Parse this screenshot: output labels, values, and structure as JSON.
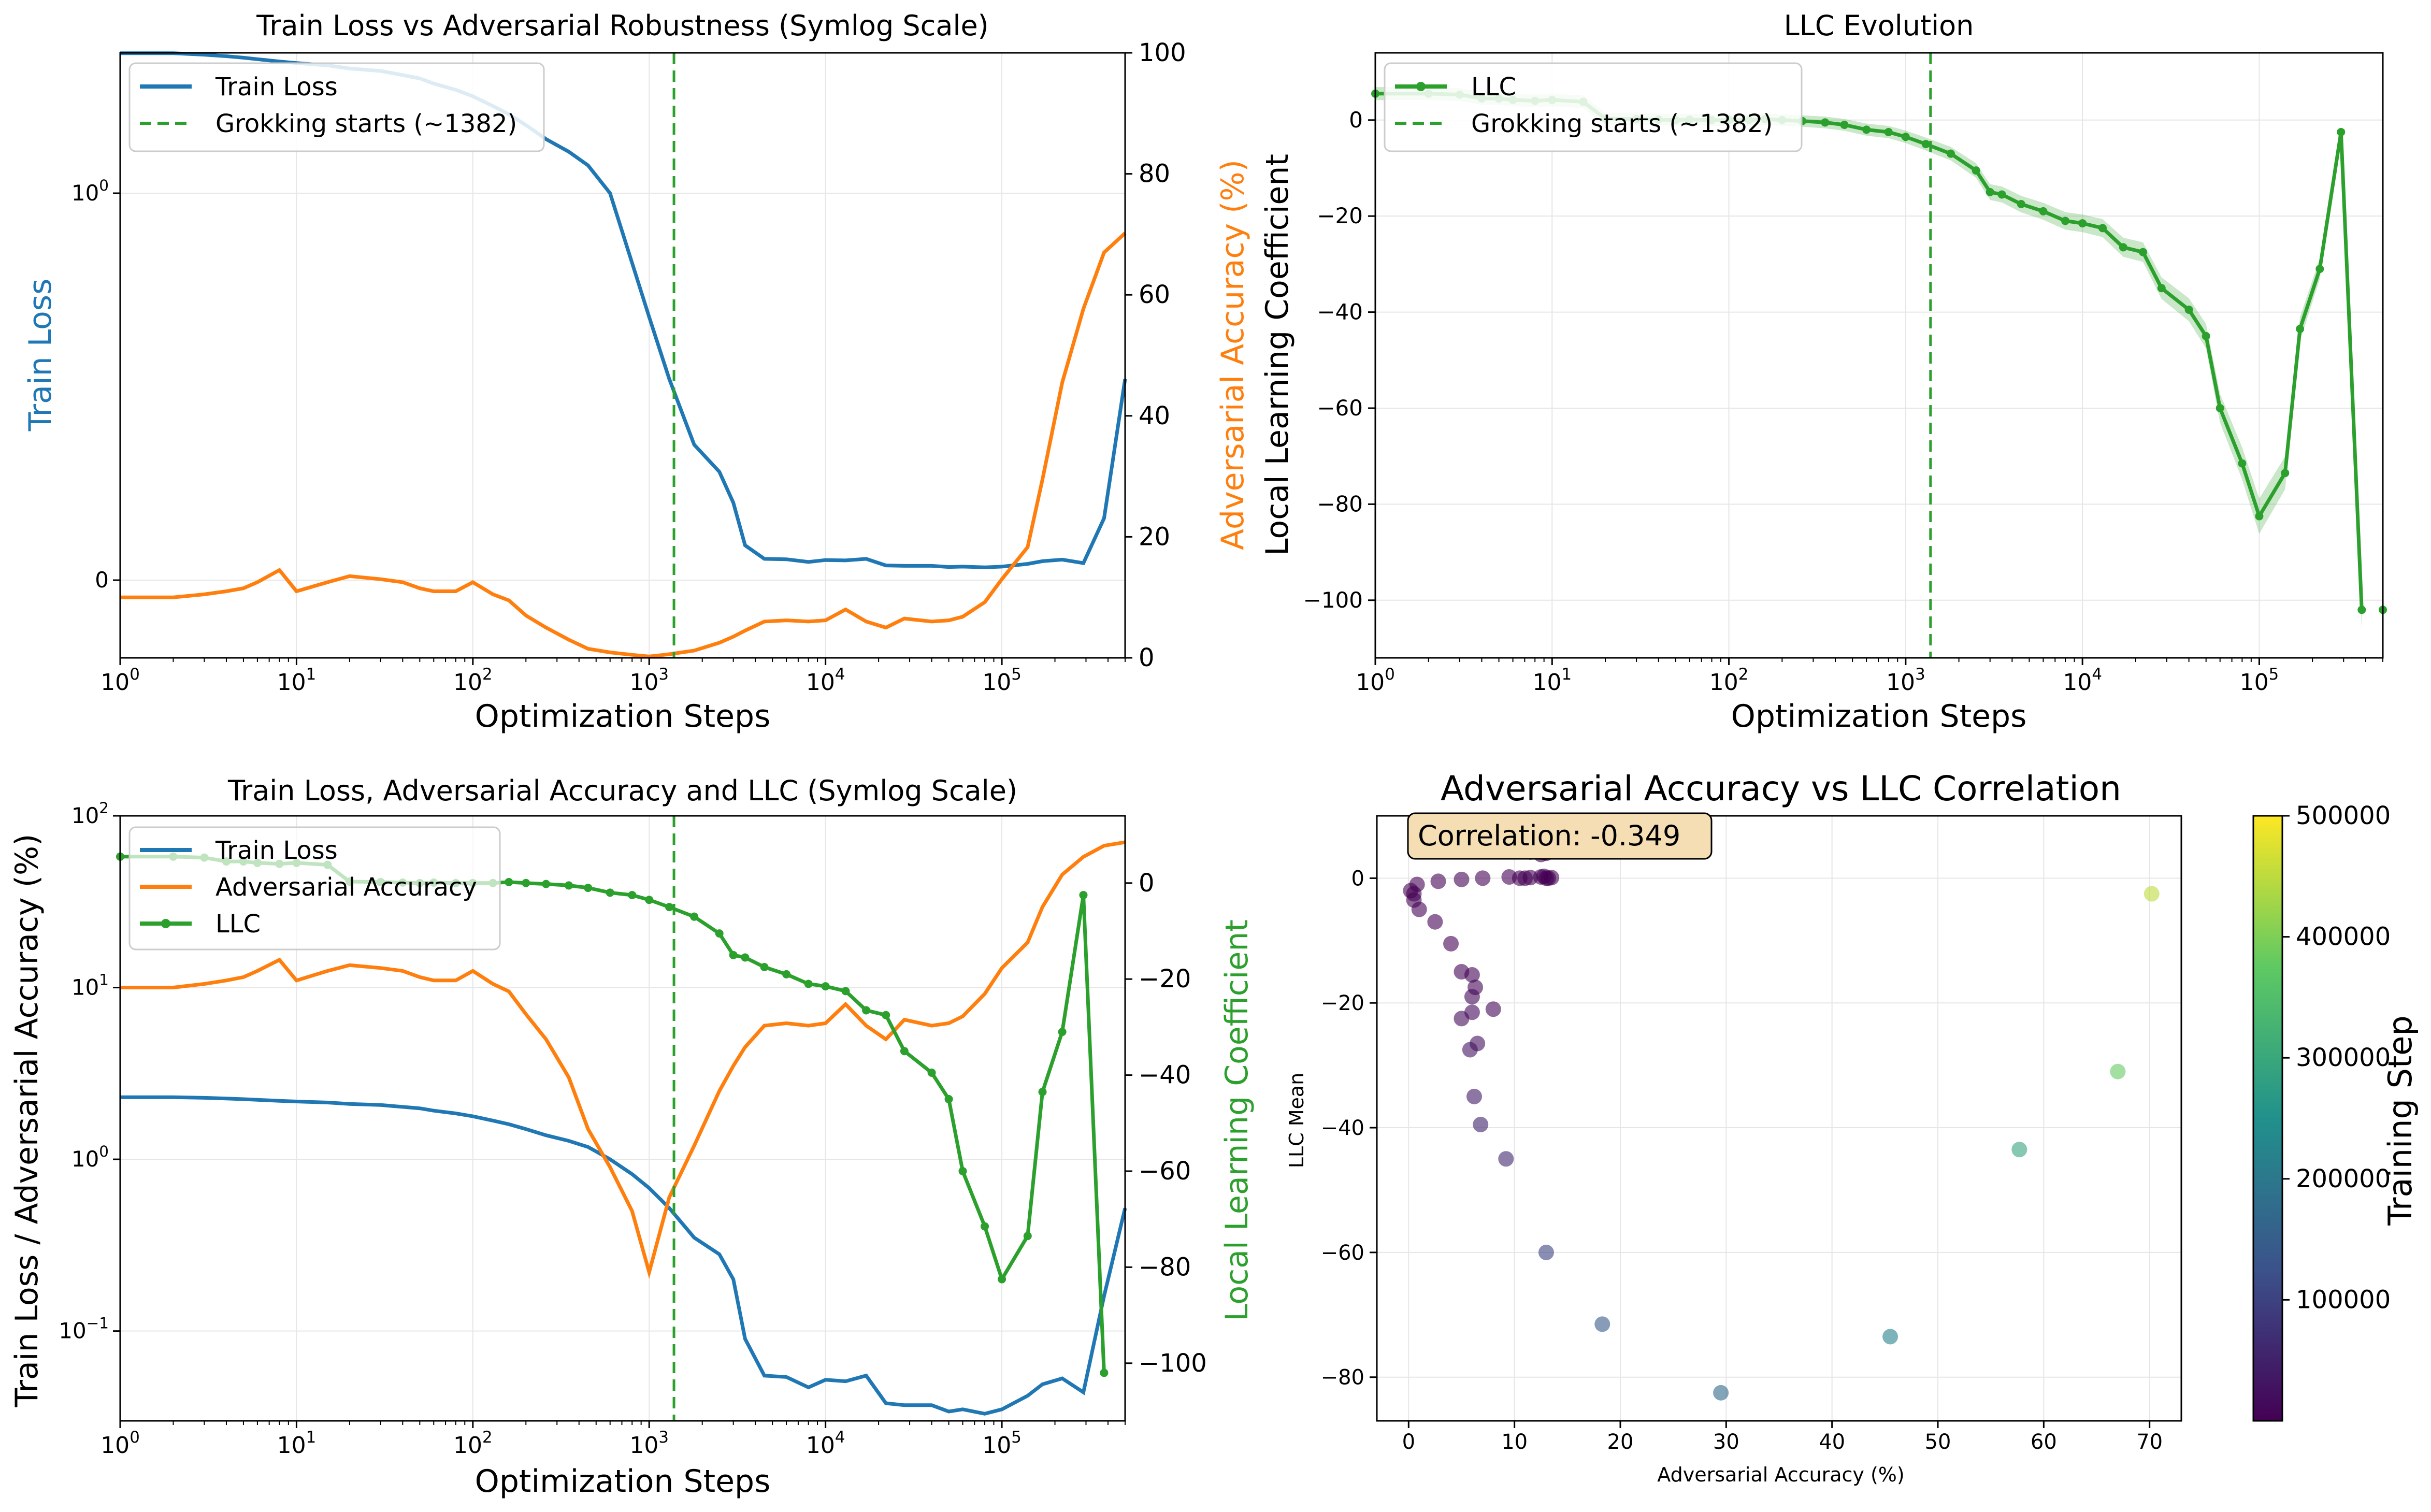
{
  "figure": {
    "colors": {
      "train_loss": "#1f77b4",
      "adversarial": "#ff7f0e",
      "llc": "#2ca02c",
      "grid": "#e6e6e6",
      "corr_box_bg": "#f5deb3"
    }
  },
  "chart_data": [
    {
      "id": "loss_vs_adv",
      "type": "line",
      "title": "Train Loss vs Adversarial Robustness (Symlog Scale)",
      "xlabel": "Optimization Steps",
      "ylabel_left": "Train Loss",
      "ylabel_right": "Adversarial Accuracy (%)",
      "x_scale": "log",
      "xlim": [
        1,
        500000
      ],
      "y_left_scale": "symlog",
      "y_left_ticks": [
        "10^0",
        "0"
      ],
      "y_right_lim": [
        0,
        100
      ],
      "y_right_ticks": [
        0,
        20,
        40,
        60,
        80,
        100
      ],
      "x_ticks": [
        "10^0",
        "10^1",
        "10^2",
        "10^3",
        "10^4",
        "10^5"
      ],
      "legend": [
        "Train Loss",
        "Grokking starts (~1382)"
      ],
      "legend_position": "upper left",
      "vline": {
        "x": 1382,
        "label": "Grokking starts (~1382)"
      },
      "grid": true
    },
    {
      "id": "llc_evolution",
      "type": "line",
      "title": "LLC Evolution",
      "xlabel": "Optimization Steps",
      "ylabel": "Local Learning Coefficient",
      "x_scale": "log",
      "xlim": [
        1,
        500000
      ],
      "ylim": [
        -112,
        14
      ],
      "y_ticks": [
        0,
        -20,
        -40,
        -60,
        -80,
        -100
      ],
      "x_ticks": [
        "10^0",
        "10^1",
        "10^2",
        "10^3",
        "10^4",
        "10^5"
      ],
      "legend": [
        "LLC",
        "Grokking starts (~1382)"
      ],
      "legend_position": "upper left",
      "vline": {
        "x": 1382,
        "label": "Grokking starts (~1382)"
      },
      "grid": true
    },
    {
      "id": "combined",
      "type": "line",
      "title": "Train Loss, Adversarial Accuracy and LLC (Symlog Scale)",
      "xlabel": "Optimization Steps",
      "ylabel_left": "Train Loss / Adversarial Accuracy (%)",
      "ylabel_right": "Local Learning Coefficient",
      "x_scale": "log",
      "xlim": [
        1,
        500000
      ],
      "y_left_scale": "log",
      "y_left_lim": [
        0.03,
        100
      ],
      "y_left_ticks": [
        "10^-1",
        "10^0",
        "10^1",
        "10^2"
      ],
      "y_right_lim": [
        -112,
        14
      ],
      "y_right_ticks": [
        0,
        -20,
        -40,
        -60,
        -80,
        -100
      ],
      "x_ticks": [
        "10^0",
        "10^1",
        "10^2",
        "10^3",
        "10^4",
        "10^5"
      ],
      "legend": [
        "Train Loss",
        "Adversarial Accuracy",
        "LLC"
      ],
      "legend_position": "upper left",
      "vline": {
        "x": 1382
      },
      "grid": true
    },
    {
      "id": "adv_vs_llc",
      "type": "scatter",
      "title": "Adversarial Accuracy vs LLC Correlation",
      "xlabel": "Adversarial Accuracy (%)",
      "ylabel": "LLC Mean",
      "xlim": [
        -3,
        73
      ],
      "ylim": [
        -87,
        10
      ],
      "x_ticks": [
        0,
        10,
        20,
        30,
        40,
        50,
        60,
        70
      ],
      "y_ticks": [
        0,
        -20,
        -40,
        -60,
        -80
      ],
      "annotation": "Correlation: -0.349",
      "colorbar": {
        "label": "Training Step",
        "range": [
          1,
          500000
        ],
        "ticks": [
          100000,
          200000,
          300000,
          400000,
          500000
        ]
      },
      "grid": true,
      "points": [
        {
          "acc": 10,
          "llc": 5.5,
          "step": 1
        },
        {
          "acc": 10,
          "llc": 5.5,
          "step": 2
        },
        {
          "acc": 10.5,
          "llc": 5.3,
          "step": 3
        },
        {
          "acc": 11.0,
          "llc": 4.5,
          "step": 4
        },
        {
          "acc": 11.5,
          "llc": 4.5,
          "step": 5
        },
        {
          "acc": 12.5,
          "llc": 4.2,
          "step": 6
        },
        {
          "acc": 13.0,
          "llc": 4.0,
          "step": 8
        },
        {
          "acc": 11.5,
          "llc": 4.2,
          "step": 10
        },
        {
          "acc": 12.5,
          "llc": 3.8,
          "step": 15
        },
        {
          "acc": 12.8,
          "llc": 0.3,
          "step": 20
        },
        {
          "acc": 12.5,
          "llc": 0.2,
          "step": 30
        },
        {
          "acc": 13.5,
          "llc": 0.1,
          "step": 40
        },
        {
          "acc": 13.0,
          "llc": 0.0,
          "step": 50
        },
        {
          "acc": 11.5,
          "llc": 0.1,
          "step": 60
        },
        {
          "acc": 11.0,
          "llc": 0.0,
          "step": 80
        },
        {
          "acc": 13.2,
          "llc": 0.0,
          "step": 100
        },
        {
          "acc": 10.5,
          "llc": 0.0,
          "step": 130
        },
        {
          "acc": 9.5,
          "llc": 0.2,
          "step": 160
        },
        {
          "acc": 7.0,
          "llc": 0.0,
          "step": 200
        },
        {
          "acc": 5.0,
          "llc": -0.2,
          "step": 260
        },
        {
          "acc": 2.8,
          "llc": -0.5,
          "step": 350
        },
        {
          "acc": 0.8,
          "llc": -1.0,
          "step": 450
        },
        {
          "acc": 0.2,
          "llc": -2.0,
          "step": 600
        },
        {
          "acc": 0.5,
          "llc": -2.5,
          "step": 800
        },
        {
          "acc": 0.5,
          "llc": -3.5,
          "step": 1000
        },
        {
          "acc": 1.0,
          "llc": -5.0,
          "step": 1300
        },
        {
          "acc": 2.5,
          "llc": -7.0,
          "step": 1800
        },
        {
          "acc": 4.0,
          "llc": -10.5,
          "step": 2500
        },
        {
          "acc": 5.0,
          "llc": -15.0,
          "step": 3500
        },
        {
          "acc": 6.0,
          "llc": -15.5,
          "step": 4500
        },
        {
          "acc": 6.3,
          "llc": -17.5,
          "step": 6000
        },
        {
          "acc": 6.0,
          "llc": -19.0,
          "step": 8000
        },
        {
          "acc": 8.0,
          "llc": -21.0,
          "step": 10000
        },
        {
          "acc": 6.0,
          "llc": -21.5,
          "step": 13000
        },
        {
          "acc": 5.0,
          "llc": -22.5,
          "step": 17000
        },
        {
          "acc": 6.5,
          "llc": -26.5,
          "step": 22000
        },
        {
          "acc": 5.8,
          "llc": -27.5,
          "step": 28000
        },
        {
          "acc": 6.2,
          "llc": -35.0,
          "step": 40000
        },
        {
          "acc": 6.8,
          "llc": -39.5,
          "step": 50000
        },
        {
          "acc": 9.2,
          "llc": -45.0,
          "step": 60000
        },
        {
          "acc": 13.0,
          "llc": -60.0,
          "step": 100000
        },
        {
          "acc": 18.3,
          "llc": -71.5,
          "step": 140000
        },
        {
          "acc": 29.5,
          "llc": -82.5,
          "step": 170000
        },
        {
          "acc": 45.5,
          "llc": -73.5,
          "step": 220000
        },
        {
          "acc": 57.7,
          "llc": -43.5,
          "step": 290000
        },
        {
          "acc": 67.0,
          "llc": -31.0,
          "step": 380000
        },
        {
          "acc": 70.2,
          "llc": -2.5,
          "step": 450000
        }
      ]
    }
  ],
  "series": {
    "train_loss": {
      "name": "Train Loss",
      "x": [
        1,
        2,
        3,
        4,
        5,
        6,
        8,
        10,
        15,
        20,
        30,
        40,
        50,
        60,
        80,
        100,
        130,
        160,
        200,
        260,
        350,
        450,
        600,
        800,
        1000,
        1300,
        1800,
        2500,
        3000,
        3500,
        4500,
        6000,
        8000,
        10000,
        13000,
        17000,
        22000,
        28000,
        40000,
        50000,
        60000,
        80000,
        100000,
        140000,
        170000,
        220000,
        290000,
        380000,
        500000
      ],
      "y": [
        2.3,
        2.3,
        2.28,
        2.26,
        2.24,
        2.22,
        2.19,
        2.17,
        2.14,
        2.1,
        2.07,
        2.02,
        1.98,
        1.92,
        1.85,
        1.78,
        1.68,
        1.6,
        1.5,
        1.38,
        1.28,
        1.18,
        1.0,
        0.82,
        0.68,
        0.52,
        0.35,
        0.28,
        0.2,
        0.09,
        0.055,
        0.054,
        0.047,
        0.052,
        0.051,
        0.055,
        0.038,
        0.037,
        0.037,
        0.034,
        0.035,
        0.033,
        0.035,
        0.042,
        0.049,
        0.053,
        0.044,
        0.16,
        0.52
      ]
    },
    "adversarial_accuracy": {
      "name": "Adversarial Accuracy",
      "x": [
        1,
        2,
        3,
        4,
        5,
        6,
        8,
        10,
        15,
        20,
        30,
        40,
        50,
        60,
        80,
        100,
        130,
        160,
        200,
        260,
        350,
        450,
        600,
        800,
        1000,
        1300,
        1800,
        2500,
        3000,
        3500,
        4500,
        6000,
        8000,
        10000,
        13000,
        17000,
        22000,
        28000,
        40000,
        50000,
        60000,
        80000,
        100000,
        140000,
        170000,
        220000,
        290000,
        380000,
        500000
      ],
      "y": [
        10,
        10,
        10.5,
        11,
        11.5,
        12.5,
        14.5,
        11,
        12.5,
        13.5,
        13,
        12.5,
        11.5,
        11,
        11,
        12.5,
        10.5,
        9.5,
        7,
        5,
        3,
        1.5,
        0.9,
        0.5,
        0.22,
        0.6,
        1.2,
        2.5,
        3.5,
        4.5,
        6,
        6.2,
        6,
        6.2,
        8,
        6,
        5,
        6.5,
        6,
        6.2,
        6.8,
        9.2,
        13,
        18.3,
        29.5,
        45.5,
        57.7,
        67,
        70.2
      ]
    },
    "llc": {
      "name": "LLC",
      "x": [
        1,
        2,
        3,
        4,
        5,
        6,
        8,
        10,
        15,
        20,
        30,
        40,
        50,
        60,
        80,
        100,
        130,
        160,
        200,
        260,
        350,
        450,
        600,
        800,
        1000,
        1300,
        1800,
        2500,
        3000,
        3500,
        4500,
        6000,
        8000,
        10000,
        13000,
        17000,
        22000,
        28000,
        40000,
        50000,
        60000,
        80000,
        100000,
        140000,
        170000,
        220000,
        290000,
        380000,
        500000
      ],
      "y": [
        5.5,
        5.5,
        5.3,
        4.5,
        4.5,
        4.2,
        4.0,
        4.2,
        3.8,
        0.3,
        0.2,
        0.1,
        0.0,
        0.1,
        0.0,
        0.0,
        0.0,
        0.2,
        0.0,
        -0.2,
        -0.5,
        -1.0,
        -2.0,
        -2.5,
        -3.5,
        -5.0,
        -7.0,
        -10.5,
        -15.0,
        -15.5,
        -17.5,
        -19.0,
        -21.0,
        -21.5,
        -22.5,
        -26.5,
        -27.5,
        -35.0,
        -39.5,
        -45.0,
        -60.0,
        -71.5,
        -82.5,
        -73.5,
        -43.5,
        -31.0,
        -2.5,
        -102.0,
        -102.0
      ]
    }
  }
}
